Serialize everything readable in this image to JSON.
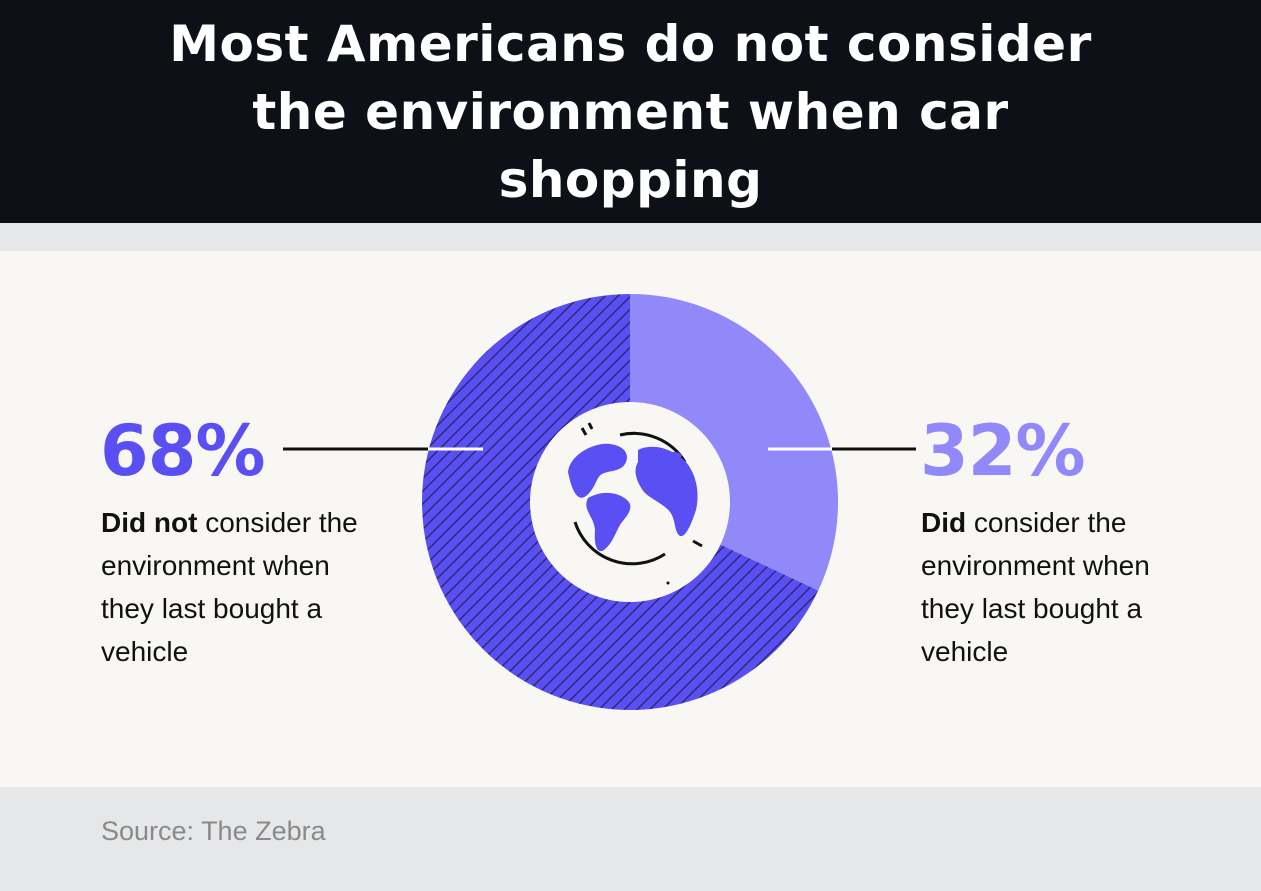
{
  "title": "Most Americans do not consider the environment when car shopping",
  "chart_data": {
    "type": "pie",
    "categories": [
      "Did not consider the environment when they last bought a vehicle",
      "Did consider the environment when they last bought a vehicle"
    ],
    "values": [
      68,
      32
    ],
    "unit": "%",
    "style": "donut",
    "center_icon": "globe-icon"
  },
  "labels": {
    "left": {
      "value": "68%",
      "bold": "Did not",
      "rest": " consider the environment when they last bought a vehicle"
    },
    "right": {
      "value": "32%",
      "bold": "Did",
      "rest": " consider the environment when they last bought a vehicle"
    }
  },
  "source": "Source: The Zebra",
  "colors": {
    "header_bg": "#0d1117",
    "did_not": "#5a4ff3",
    "did": "#9189fa",
    "hatch": "#2d2a78"
  }
}
